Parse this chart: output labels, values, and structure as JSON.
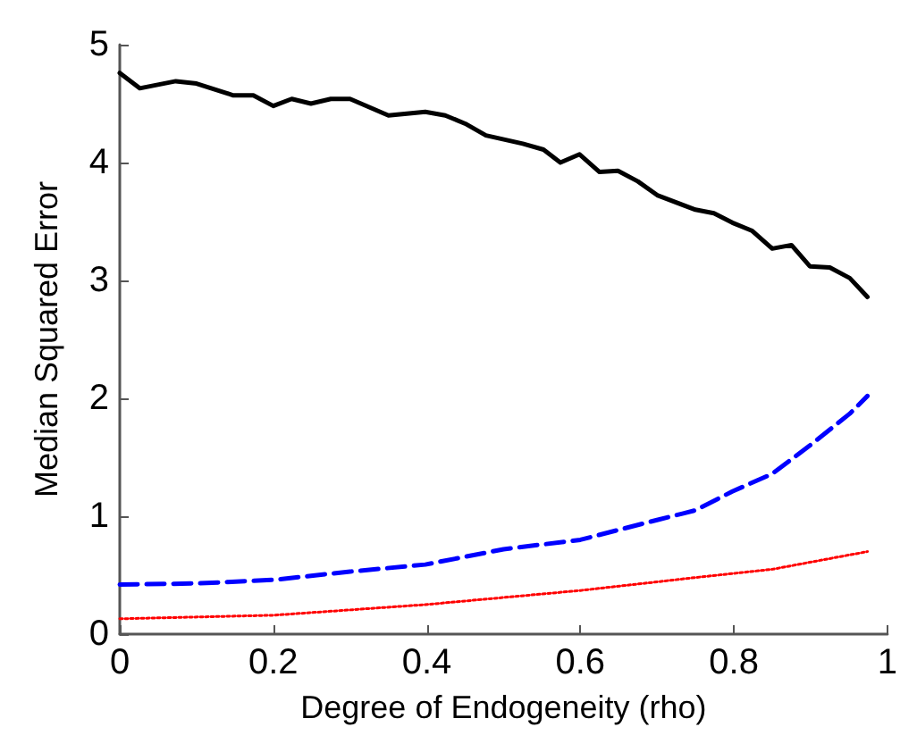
{
  "chart_data": {
    "type": "line",
    "xlabel": "Degree of Endogeneity (rho)",
    "ylabel": "Median Squared Error",
    "xlim": [
      0,
      1
    ],
    "xticks": [
      0,
      0.2,
      0.4,
      0.6,
      0.8,
      1
    ],
    "ylim": [
      0,
      5
    ],
    "yticks": [
      0,
      1,
      2,
      3,
      4,
      5
    ],
    "grid": false,
    "marker": "none",
    "series": [
      {
        "color": "#000000",
        "line_style": "solid",
        "x": [
          0,
          0.026,
          0.073,
          0.1,
          0.148,
          0.174,
          0.2,
          0.224,
          0.249,
          0.275,
          0.3,
          0.35,
          0.398,
          0.424,
          0.45,
          0.477,
          0.525,
          0.552,
          0.574,
          0.599,
          0.625,
          0.649,
          0.675,
          0.701,
          0.75,
          0.774,
          0.798,
          0.824,
          0.85,
          0.875,
          0.899,
          0.925,
          0.951,
          0.974
        ],
        "values": [
          4.76,
          4.63,
          4.69,
          4.67,
          4.57,
          4.57,
          4.48,
          4.54,
          4.5,
          4.54,
          4.54,
          4.4,
          4.43,
          4.4,
          4.33,
          4.23,
          4.16,
          4.11,
          4.0,
          4.07,
          3.92,
          3.93,
          3.84,
          3.72,
          3.6,
          3.57,
          3.49,
          3.42,
          3.27,
          3.3,
          3.12,
          3.11,
          3.02,
          2.86
        ]
      },
      {
        "color": "#0000ff",
        "line_style": "dashed",
        "x": [
          0,
          0.1,
          0.2,
          0.3,
          0.398,
          0.5,
          0.6,
          0.701,
          0.75,
          0.798,
          0.85,
          0.899,
          0.951,
          0.974
        ],
        "values": [
          0.42,
          0.43,
          0.46,
          0.53,
          0.59,
          0.72,
          0.8,
          0.97,
          1.05,
          1.21,
          1.36,
          1.6,
          1.87,
          2.02
        ]
      },
      {
        "color": "#ff0000",
        "line_style": "dotted",
        "x": [
          0,
          0.2,
          0.398,
          0.6,
          0.75,
          0.85,
          0.974
        ],
        "values": [
          0.13,
          0.16,
          0.25,
          0.37,
          0.48,
          0.55,
          0.7
        ]
      }
    ]
  }
}
